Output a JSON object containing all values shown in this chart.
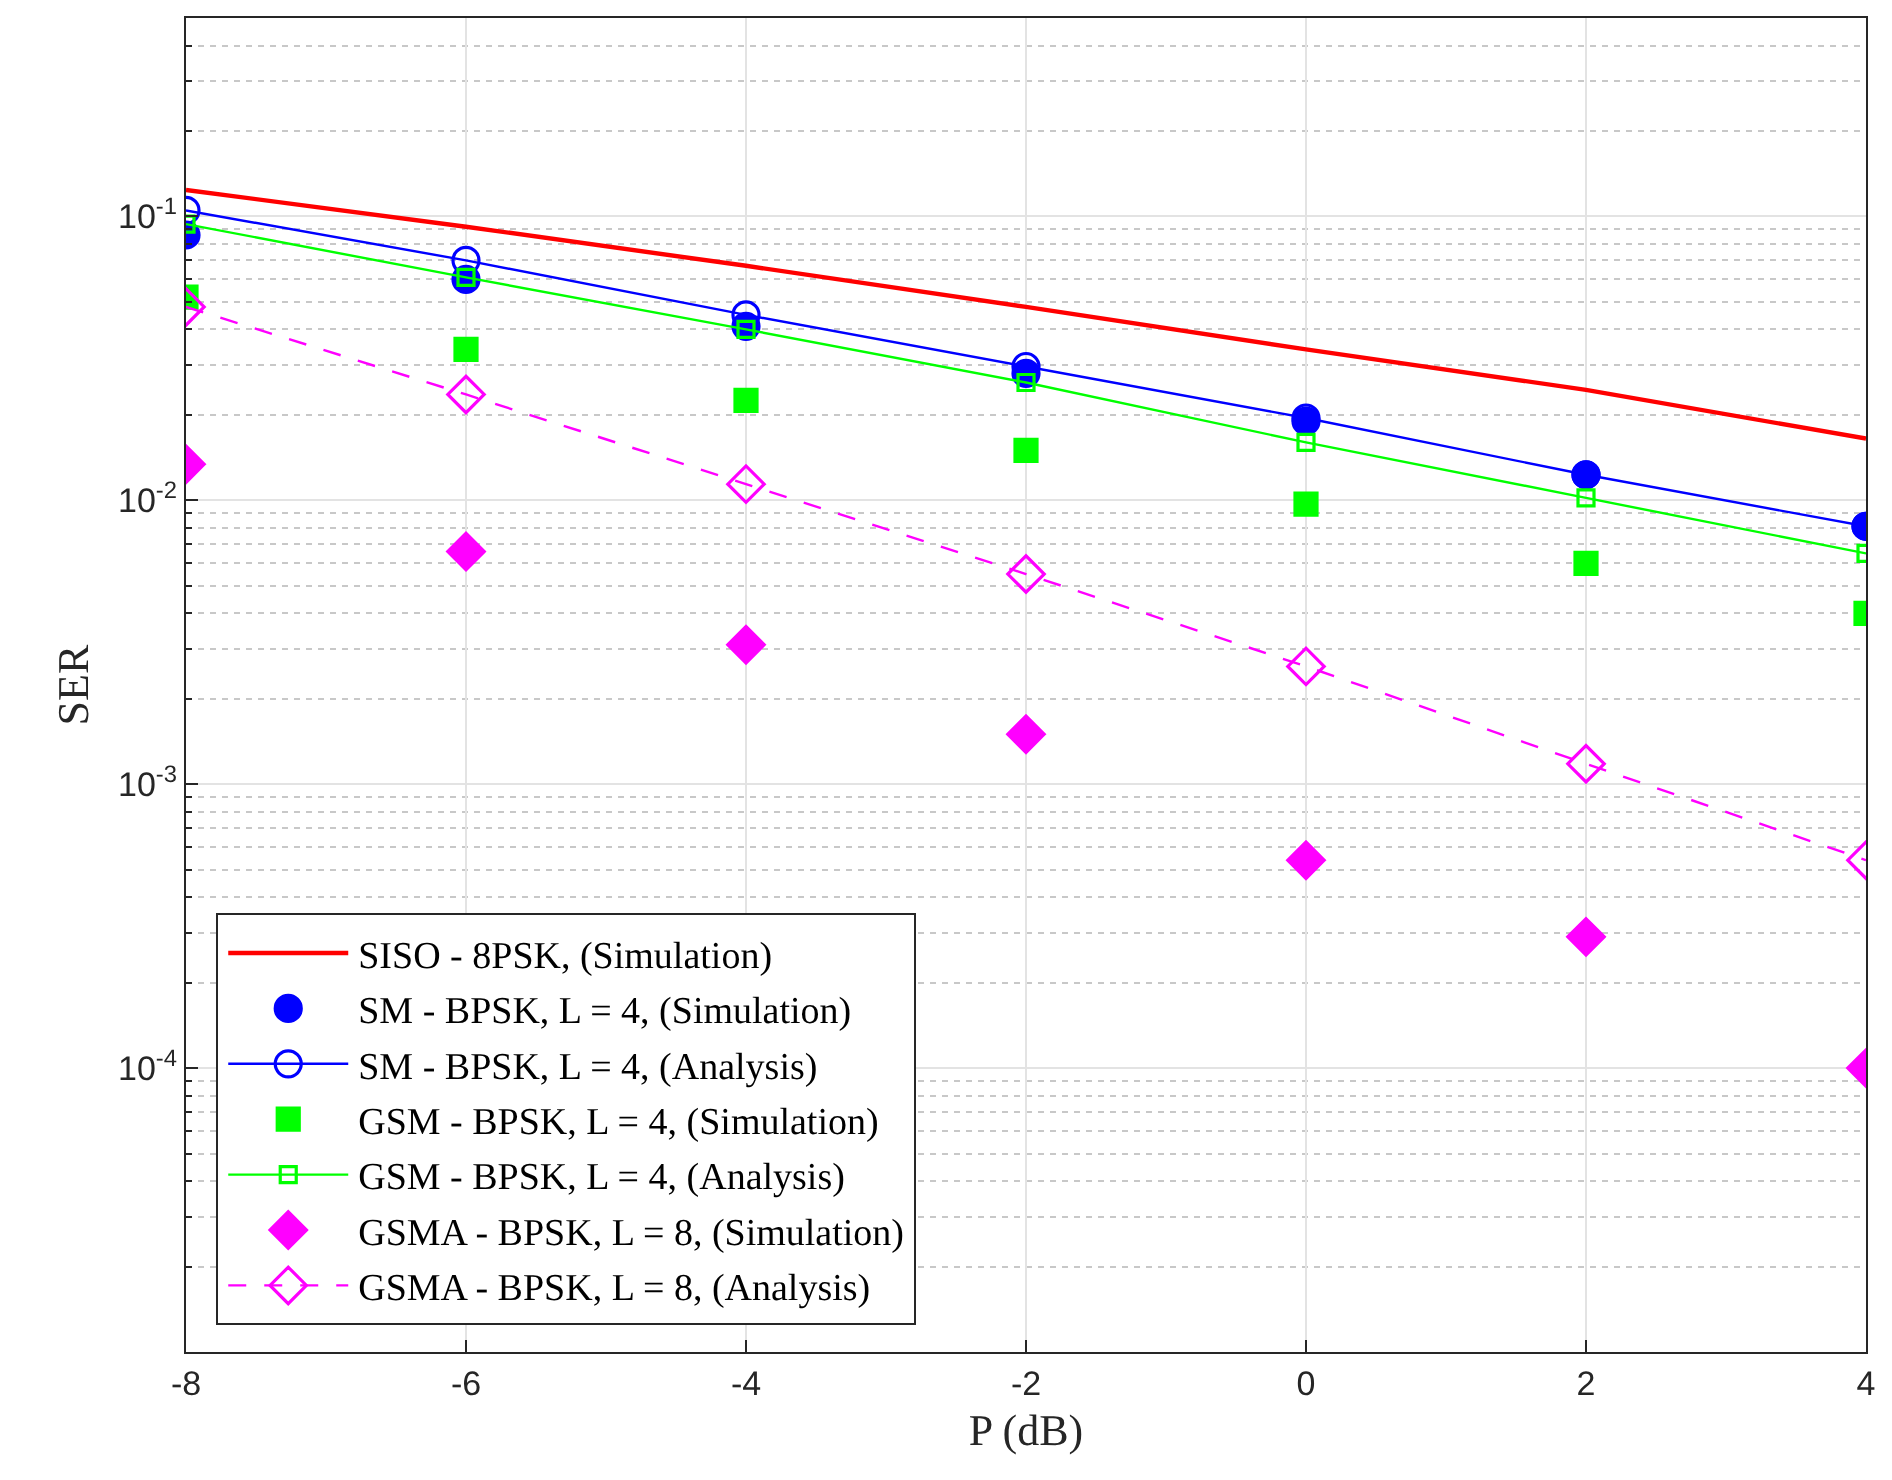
{
  "chart_data": {
    "type": "line",
    "xlabel": "P (dB)",
    "ylabel": "SER",
    "x": [
      -8,
      -6,
      -4,
      -2,
      0,
      2,
      4
    ],
    "xlim": [
      -8,
      4
    ],
    "xticks": [
      -8,
      -6,
      -4,
      -2,
      0,
      2,
      4
    ],
    "log": "y",
    "ylim": [
      1e-05,
      0.5
    ],
    "yticks": [
      {
        "value": 0.0001,
        "label": "10$^{-4}$"
      },
      {
        "value": 0.001,
        "label": "10$^{-3}$"
      },
      {
        "value": 0.01,
        "label": "10$^{-2}$"
      },
      {
        "value": 0.1,
        "label": "10$^{-1}$"
      }
    ],
    "grid": true,
    "legend": "bottom left",
    "series": [
      {
        "name": "SISO - 8PSK, (Simulation)",
        "color": "#ff0000",
        "marker": "none",
        "line_style": "solid",
        "values": [
          0.124,
          0.092,
          0.067,
          0.048,
          0.034,
          0.0245,
          0.0165
        ]
      },
      {
        "name": "SM - BPSK, L = 4, (Simulation)",
        "type": "scatter",
        "color": "#0000ff",
        "marker": "circle",
        "values": [
          0.086,
          0.06,
          0.041,
          0.028,
          0.019,
          0.0123,
          0.0081
        ]
      },
      {
        "name": "SM - BPSK, L = 4, (Analysis)",
        "color": "#0000ff",
        "marker": "circle",
        "line_style": "solid",
        "values": [
          0.105,
          0.07,
          0.045,
          0.0296,
          0.0195,
          0.0123,
          0.0081
        ]
      },
      {
        "name": "GSM - BPSK, L = 4, (Simulation)",
        "type": "scatter",
        "color": "#00ff00",
        "marker": "square",
        "values": [
          0.052,
          0.034,
          0.0225,
          0.015,
          0.0097,
          0.006,
          0.004
        ]
      },
      {
        "name": "GSM - BPSK, L = 4, (Analysis)",
        "color": "#00ff00",
        "marker": "square",
        "line_style": "solid",
        "values": [
          0.094,
          0.061,
          0.04,
          0.026,
          0.016,
          0.0102,
          0.0065
        ]
      },
      {
        "name": "GSMA - BPSK, L = 8, (Simulation)",
        "type": "scatter",
        "color": "#ff00ff",
        "marker": "diamond",
        "values": [
          0.0134,
          0.0066,
          0.0031,
          0.0015,
          0.00054,
          0.00029,
          0.0001
        ]
      },
      {
        "name": "GSMA - BPSK, L = 8, (Analysis)",
        "color": "#ff00ff",
        "marker": "diamond",
        "line_style": "dashed",
        "values": [
          0.048,
          0.0236,
          0.0114,
          0.0055,
          0.0026,
          0.00118,
          0.00054
        ]
      }
    ]
  }
}
